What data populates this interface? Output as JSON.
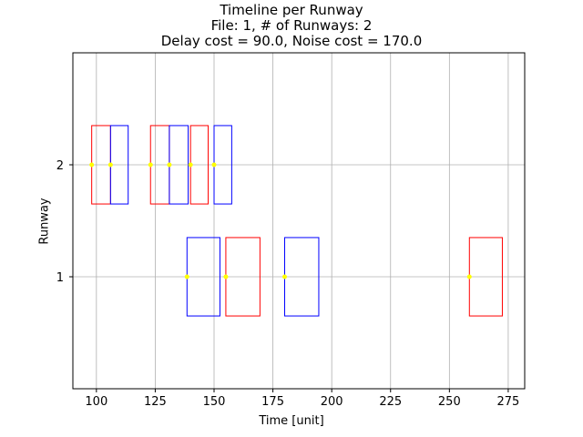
{
  "chart_data": {
    "type": "timeline",
    "title_lines": [
      "Timeline per Runway",
      "File: 1, # of Runways: 2",
      "Delay cost = 90.0, Noise cost = 170.0"
    ],
    "xlabel": "Time [unit]",
    "ylabel": "Runway",
    "xlim": [
      90,
      282
    ],
    "ylim": [
      0,
      3
    ],
    "xticks": [
      100,
      125,
      150,
      175,
      200,
      225,
      250,
      275
    ],
    "yticks": [
      1,
      2
    ],
    "grid": true,
    "box_half_height": 0.35,
    "point_color": "#ffff00",
    "intervals": [
      {
        "runway": 2,
        "start": 98,
        "end": 106,
        "point": 98,
        "color": "#ff0000"
      },
      {
        "runway": 2,
        "start": 106,
        "end": 113.5,
        "point": 106,
        "color": "#0000ff"
      },
      {
        "runway": 2,
        "start": 123,
        "end": 131,
        "point": 123,
        "color": "#ff0000"
      },
      {
        "runway": 2,
        "start": 131,
        "end": 139,
        "point": 131,
        "color": "#0000ff"
      },
      {
        "runway": 2,
        "start": 140,
        "end": 147.5,
        "point": 140,
        "color": "#ff0000"
      },
      {
        "runway": 2,
        "start": 150,
        "end": 157.5,
        "point": 150,
        "color": "#0000ff"
      },
      {
        "runway": 1,
        "start": 138.5,
        "end": 152.5,
        "point": 138.5,
        "color": "#0000ff"
      },
      {
        "runway": 1,
        "start": 155,
        "end": 169.5,
        "point": 155,
        "color": "#ff0000"
      },
      {
        "runway": 1,
        "start": 180,
        "end": 194.5,
        "point": 180,
        "color": "#0000ff"
      },
      {
        "runway": 1,
        "start": 258.5,
        "end": 272.5,
        "point": 258.5,
        "color": "#ff0000"
      }
    ]
  }
}
